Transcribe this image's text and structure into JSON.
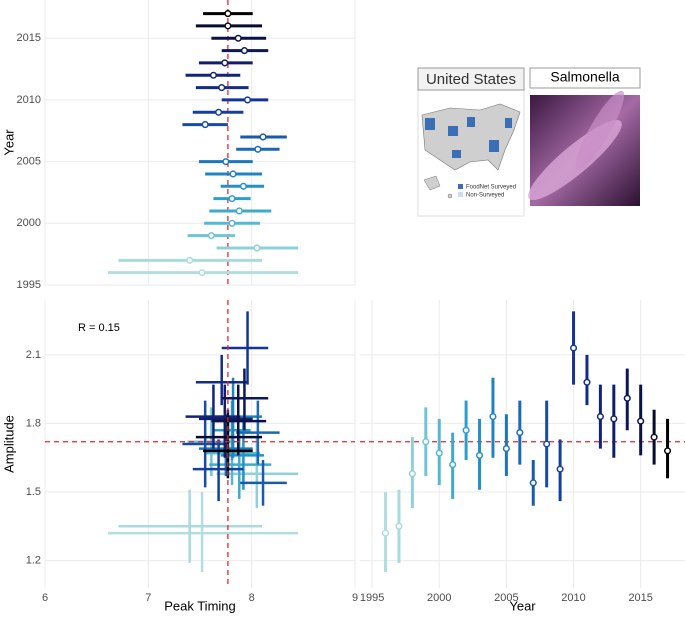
{
  "chart_data": {
    "type": "panel-grid",
    "years": [
      1996,
      1997,
      1998,
      1999,
      2000,
      2001,
      2002,
      2003,
      2004,
      2005,
      2006,
      2007,
      2008,
      2009,
      2010,
      2011,
      2012,
      2013,
      2014,
      2015,
      2016,
      2017
    ],
    "colors": [
      "#b3dede",
      "#a9dbdc",
      "#8fd0da",
      "#6fc4d6",
      "#55b8d2",
      "#3eabcd",
      "#2b9ecb",
      "#2390c6",
      "#1f83c2",
      "#1c76bd",
      "#1a68b6",
      "#185aae",
      "#164ca6",
      "#153f9d",
      "#143494",
      "#132b88",
      "#12237c",
      "#101c6c",
      "#0e165a",
      "#0b1146",
      "#070b2e",
      "#000000"
    ],
    "peak_timing": [
      7.52,
      7.4,
      8.05,
      7.61,
      7.81,
      7.88,
      7.81,
      7.92,
      7.82,
      7.75,
      8.06,
      8.11,
      7.55,
      7.68,
      7.96,
      7.71,
      7.63,
      7.74,
      7.93,
      7.87,
      7.77,
      7.77
    ],
    "peak_timing_low": [
      6.61,
      6.71,
      7.66,
      7.38,
      7.54,
      7.59,
      7.63,
      7.7,
      7.55,
      7.49,
      7.85,
      7.89,
      7.33,
      7.43,
      7.71,
      7.46,
      7.36,
      7.49,
      7.71,
      7.61,
      7.46,
      7.53
    ],
    "peak_timing_high": [
      8.45,
      8.1,
      8.45,
      7.84,
      8.08,
      8.19,
      7.99,
      8.12,
      8.1,
      8.01,
      8.27,
      8.34,
      7.77,
      7.92,
      8.16,
      7.97,
      7.89,
      8.01,
      8.16,
      8.14,
      8.1,
      8.01
    ],
    "amplitude": [
      1.32,
      1.35,
      1.58,
      1.72,
      1.67,
      1.62,
      1.77,
      1.66,
      1.83,
      1.69,
      1.76,
      1.54,
      1.71,
      1.6,
      2.13,
      1.98,
      1.83,
      1.82,
      1.91,
      1.81,
      1.74,
      1.68
    ],
    "amplitude_low": [
      1.15,
      1.19,
      1.43,
      1.57,
      1.53,
      1.47,
      1.64,
      1.51,
      1.65,
      1.57,
      1.62,
      1.44,
      1.52,
      1.46,
      1.97,
      1.88,
      1.69,
      1.65,
      1.77,
      1.66,
      1.62,
      1.56
    ],
    "amplitude_high": [
      1.5,
      1.51,
      1.74,
      1.87,
      1.82,
      1.76,
      1.9,
      1.82,
      2.0,
      1.84,
      1.9,
      1.64,
      1.9,
      1.73,
      2.29,
      2.1,
      1.97,
      1.97,
      2.04,
      1.97,
      1.86,
      1.82
    ],
    "reference_lines": {
      "peak_timing": 7.77,
      "amplitude": 1.72,
      "color": "#e8262b"
    },
    "annotation": "R =  0.15",
    "panels": [
      {
        "type": "year-timing",
        "ylabel": "Year",
        "xlim": [
          6,
          9
        ],
        "xticks": [
          6,
          7,
          8,
          9
        ],
        "x_tick_labels": false,
        "ylim": [
          1995,
          2018.1
        ],
        "yticks": [
          1995,
          2000,
          2005,
          2010,
          2015
        ],
        "y_tick_labels": true
      },
      {
        "type": "timing-amplitude",
        "xlabel": "Peak Timing",
        "ylabel": "Amplitude",
        "xlim": [
          6,
          9
        ],
        "xticks": [
          6,
          7,
          8,
          9
        ],
        "x_tick_labels": true,
        "ylim": [
          1.08,
          2.34
        ],
        "yticks": [
          1.2,
          1.5,
          1.8,
          2.1
        ],
        "y_tick_labels": true
      },
      {
        "type": "year-amplitude",
        "xlabel": "Year",
        "xlim": [
          1994.1,
          2018.3
        ],
        "xticks": [
          1995,
          2000,
          2005,
          2010,
          2015
        ],
        "x_tick_labels": true,
        "ylim": [
          1.08,
          2.34
        ],
        "yticks": [
          1.2,
          1.5,
          1.8,
          2.1
        ],
        "y_tick_labels": false
      }
    ],
    "inset": {
      "map_title": "United States",
      "image_title": "Salmonella",
      "legend": [
        {
          "name": "FoodNet Surveyed",
          "color": "#3a6fb5"
        },
        {
          "name": "Non-Surveyed",
          "color": "#c9def0"
        }
      ]
    }
  }
}
